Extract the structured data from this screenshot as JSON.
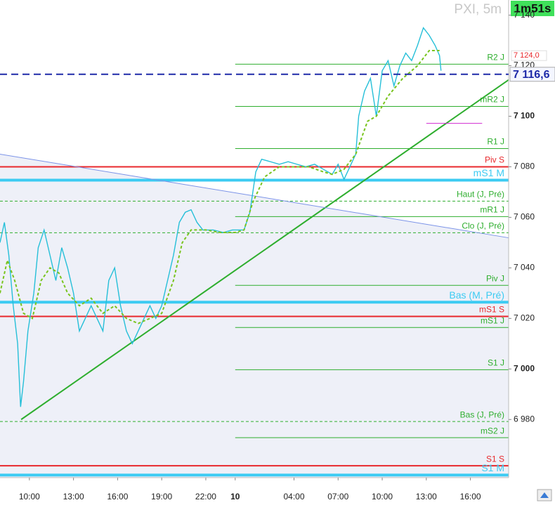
{
  "chart_data": {
    "type": "line",
    "title": "PXI, 5m",
    "timer": "1m51s",
    "xlim": [
      8,
      42.6
    ],
    "ylim": [
      6957,
      7146
    ],
    "yticks": [
      {
        "value": 6980,
        "label": "6 980"
      },
      {
        "value": 7000,
        "label": "7 000"
      },
      {
        "value": 7020,
        "label": "7 020"
      },
      {
        "value": 7040,
        "label": "7 040"
      },
      {
        "value": 7060,
        "label": "7 060"
      },
      {
        "value": 7080,
        "label": "7 080"
      },
      {
        "value": 7100,
        "label": "7 100"
      },
      {
        "value": 7120,
        "label": "7 120"
      },
      {
        "value": 7140,
        "label": "7 140"
      }
    ],
    "xticks": [
      {
        "value": 10,
        "label": "10:00"
      },
      {
        "value": 13,
        "label": "13:00"
      },
      {
        "value": 16,
        "label": "16:00"
      },
      {
        "value": 19,
        "label": "19:00"
      },
      {
        "value": 22,
        "label": "22:00"
      },
      {
        "value": 24,
        "label": "10"
      },
      {
        "value": 28,
        "label": "04:00"
      },
      {
        "value": 31,
        "label": "07:00"
      },
      {
        "value": 34,
        "label": "10:00"
      },
      {
        "value": 37,
        "label": "13:00"
      },
      {
        "value": 40,
        "label": "16:00"
      }
    ],
    "series": [
      {
        "name": "PXI",
        "color": "#25bfd8",
        "dash": false,
        "x": [
          8.0,
          8.3,
          8.6,
          8.9,
          9.2,
          9.4,
          9.6,
          9.9,
          10.3,
          10.6,
          11.0,
          11.4,
          11.8,
          12.2,
          12.6,
          13.0,
          13.4,
          13.8,
          14.2,
          14.6,
          15.0,
          15.4,
          15.8,
          16.2,
          16.6,
          17.0,
          17.4,
          17.8,
          18.2,
          18.6,
          19.0,
          19.4,
          19.8,
          20.2,
          20.6,
          21.0,
          21.4,
          21.8,
          22.5,
          23.2,
          23.8,
          24.6,
          25.0,
          25.4,
          25.8,
          26.4,
          27.0,
          27.6,
          28.2,
          28.8,
          29.4,
          30.0,
          30.6,
          31.0,
          31.4,
          31.8,
          32.2,
          32.4,
          32.8,
          33.2,
          33.6,
          34.0,
          34.4,
          34.8,
          35.2,
          35.6,
          36.0,
          36.4,
          36.8,
          37.2,
          37.6,
          37.9,
          38.0
        ],
        "values": [
          7050,
          7058,
          7045,
          7025,
          7010,
          6985,
          6995,
          7015,
          7030,
          7048,
          7055,
          7045,
          7035,
          7048,
          7040,
          7030,
          7015,
          7020,
          7025,
          7020,
          7015,
          7035,
          7040,
          7025,
          7015,
          7010,
          7015,
          7020,
          7025,
          7020,
          7025,
          7035,
          7045,
          7058,
          7062,
          7063,
          7058,
          7055,
          7055,
          7054,
          7055,
          7055,
          7062,
          7078,
          7083,
          7082,
          7081,
          7082,
          7081,
          7080,
          7081,
          7079,
          7077,
          7081,
          7075,
          7080,
          7085,
          7100,
          7110,
          7115,
          7100,
          7118,
          7122,
          7112,
          7120,
          7125,
          7122,
          7128,
          7135,
          7132,
          7128,
          7124,
          7118
        ]
      },
      {
        "name": "MA",
        "color": "#79c41e",
        "dash": true,
        "x": [
          8.0,
          8.5,
          9.0,
          9.6,
          10.2,
          10.8,
          11.4,
          12.0,
          12.6,
          13.4,
          14.2,
          15.0,
          15.8,
          16.6,
          17.4,
          18.2,
          19.0,
          19.8,
          20.4,
          21.0,
          22.0,
          23.0,
          24.0,
          24.6,
          25.2,
          26.0,
          27.0,
          28.0,
          29.0,
          30.0,
          30.6,
          31.4,
          32.2,
          33.0,
          33.6,
          34.4,
          35.4,
          36.4,
          37.2,
          37.9
        ],
        "values": [
          7030,
          7043,
          7035,
          7022,
          7020,
          7035,
          7040,
          7038,
          7030,
          7025,
          7028,
          7022,
          7025,
          7020,
          7018,
          7020,
          7022,
          7035,
          7050,
          7055,
          7055,
          7054,
          7054,
          7055,
          7066,
          7076,
          7080,
          7080,
          7080,
          7078,
          7077,
          7079,
          7085,
          7098,
          7100,
          7108,
          7115,
          7120,
          7126,
          7126
        ]
      }
    ],
    "levels": [
      {
        "label": "R2 J",
        "value": 7120.6,
        "color": "#2eae2e",
        "start": 24,
        "width": 1,
        "dash": false
      },
      {
        "label": "mR2 J",
        "value": 7103.9,
        "color": "#2eae2e",
        "start": 24,
        "width": 1,
        "dash": false
      },
      {
        "label": "R1 J",
        "value": 7087.2,
        "color": "#2eae2e",
        "start": 24,
        "width": 1,
        "dash": false
      },
      {
        "label": "Piv S",
        "value": 7080,
        "color": "#e8282c",
        "start": 8,
        "width": 2,
        "dash": false
      },
      {
        "label": "mS1 M",
        "value": 7074.7,
        "color": "#3ccbf2",
        "start": 8,
        "width": 4,
        "dash": false
      },
      {
        "label": "Haut (J, Pré)",
        "value": 7066.4,
        "color": "#2eae2e",
        "start": 8,
        "width": 1,
        "dash": true
      },
      {
        "label": "mR1 J",
        "value": 7060.3,
        "color": "#2eae2e",
        "start": 24,
        "width": 1,
        "dash": false
      },
      {
        "label": "Clo (J, Pré)",
        "value": 7053.9,
        "color": "#2eae2e",
        "start": 8,
        "width": 1,
        "dash": true
      },
      {
        "label": "Piv J",
        "value": 7033.1,
        "color": "#2eae2e",
        "start": 24,
        "width": 1,
        "dash": false
      },
      {
        "label": "Bas (M, Pré)",
        "value": 7026.4,
        "color": "#3ccbf2",
        "start": 8,
        "width": 4,
        "dash": false
      },
      {
        "label": "mS1 S",
        "value": 7020.8,
        "color": "#e8282c",
        "start": 8,
        "width": 2,
        "dash": false
      },
      {
        "label": "mS1 J",
        "value": 7016.4,
        "color": "#2eae2e",
        "start": 24,
        "width": 1,
        "dash": false
      },
      {
        "label": "S1 J",
        "value": 6999.7,
        "color": "#2eae2e",
        "start": 24,
        "width": 1,
        "dash": false
      },
      {
        "label": "Bas (J, Pré)",
        "value": 6979.2,
        "color": "#2eae2e",
        "start": 8,
        "width": 1,
        "dash": true
      },
      {
        "label": "mS2 J",
        "value": 6972.8,
        "color": "#2eae2e",
        "start": 24,
        "width": 1,
        "dash": false
      },
      {
        "label": "S1 S",
        "value": 6961.7,
        "color": "#e8282c",
        "start": 8,
        "width": 2,
        "dash": false
      },
      {
        "label": "S1 M",
        "value": 6958,
        "color": "#3ccbf2",
        "start": 8,
        "width": 4,
        "dash": false
      }
    ],
    "trendlines": [
      {
        "color": "#2eae2e",
        "width": 2,
        "x": [
          9.44,
          42.6
        ],
        "values": [
          6980,
          7114.4
        ]
      },
      {
        "color": "#7b93e8",
        "width": 1,
        "x": [
          8,
          42.6
        ],
        "values": [
          7085,
          7051.9
        ]
      },
      {
        "color": "#d12ad1",
        "width": 1,
        "x": [
          37,
          40.8
        ],
        "values": [
          7097.2,
          7097.2
        ]
      }
    ],
    "last_price": {
      "value": 7116.6,
      "label": "7 116,6",
      "color": "#1e2aa8"
    },
    "high_marker": {
      "value": 7124,
      "label": "7 124,0",
      "color": "#e8282c"
    }
  }
}
